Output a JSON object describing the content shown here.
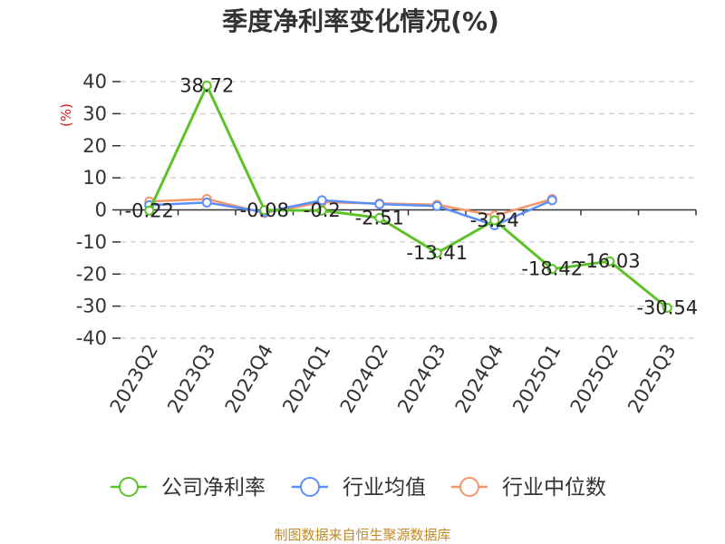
{
  "chart_data": {
    "type": "line",
    "title": "季度净利率变化情况(%)",
    "ylabel": "(%)",
    "xlabel": "",
    "categories": [
      "2023Q2",
      "2023Q3",
      "2023Q4",
      "2024Q1",
      "2024Q2",
      "2024Q3",
      "2024Q4",
      "2025Q1",
      "2025Q2",
      "2025Q3"
    ],
    "ylim": [
      -40,
      40
    ],
    "yticks": [
      40,
      30,
      20,
      10,
      0,
      -10,
      -20,
      -30,
      -40
    ],
    "grid": true,
    "legend_position": "bottom",
    "series": [
      {
        "name": "公司净利率",
        "color": "#5dc128",
        "values": [
          -0.22,
          38.72,
          -0.08,
          -0.2,
          -2.51,
          -13.41,
          -3.24,
          -18.42,
          -16.03,
          -30.54
        ],
        "labels": [
          "-0.22",
          "38.72",
          "-0.08",
          "-0.2",
          "-2.51",
          "-13.41",
          "-3.24",
          "-18.42",
          "-16.03",
          "-30.54"
        ]
      },
      {
        "name": "行业均值",
        "color": "#5b8ff9",
        "values": [
          1.5,
          2.3,
          -0.7,
          3.0,
          1.8,
          1.2,
          -4.8,
          3.0,
          null,
          null
        ]
      },
      {
        "name": "行业中位数",
        "color": "#f5956a",
        "values": [
          2.6,
          3.4,
          -1.0,
          2.4,
          2.0,
          1.6,
          -1.8,
          3.4,
          null,
          null
        ]
      }
    ]
  },
  "source_text": "制图数据来自恒生聚源数据库"
}
